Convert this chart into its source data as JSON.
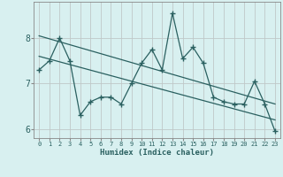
{
  "xlabel": "Humidex (Indice chaleur)",
  "ylabel": "",
  "background_color": "#d8f0f0",
  "grid_color": "#c0c8c8",
  "line_color": "#2a6060",
  "x_data": [
    0,
    1,
    2,
    3,
    4,
    5,
    6,
    7,
    8,
    9,
    10,
    11,
    12,
    13,
    14,
    15,
    16,
    17,
    18,
    19,
    20,
    21,
    22,
    23
  ],
  "y_data": [
    7.3,
    7.5,
    8.0,
    7.5,
    6.3,
    6.6,
    6.7,
    6.7,
    6.55,
    7.0,
    7.45,
    7.75,
    7.3,
    8.55,
    7.55,
    7.8,
    7.45,
    6.7,
    6.6,
    6.55,
    6.55,
    7.05,
    6.55,
    5.95
  ],
  "trend1_x": [
    0,
    23
  ],
  "trend1_y": [
    8.05,
    6.55
  ],
  "trend2_x": [
    0,
    23
  ],
  "trend2_y": [
    7.6,
    6.2
  ],
  "ylim": [
    5.8,
    8.8
  ],
  "xlim": [
    -0.5,
    23.5
  ],
  "yticks": [
    6,
    7,
    8
  ],
  "xtick_labels": [
    "0",
    "1",
    "2",
    "3",
    "4",
    "5",
    "6",
    "7",
    "8",
    "9",
    "10",
    "11",
    "12",
    "13",
    "14",
    "15",
    "16",
    "17",
    "18",
    "19",
    "20",
    "21",
    "22",
    "23"
  ]
}
